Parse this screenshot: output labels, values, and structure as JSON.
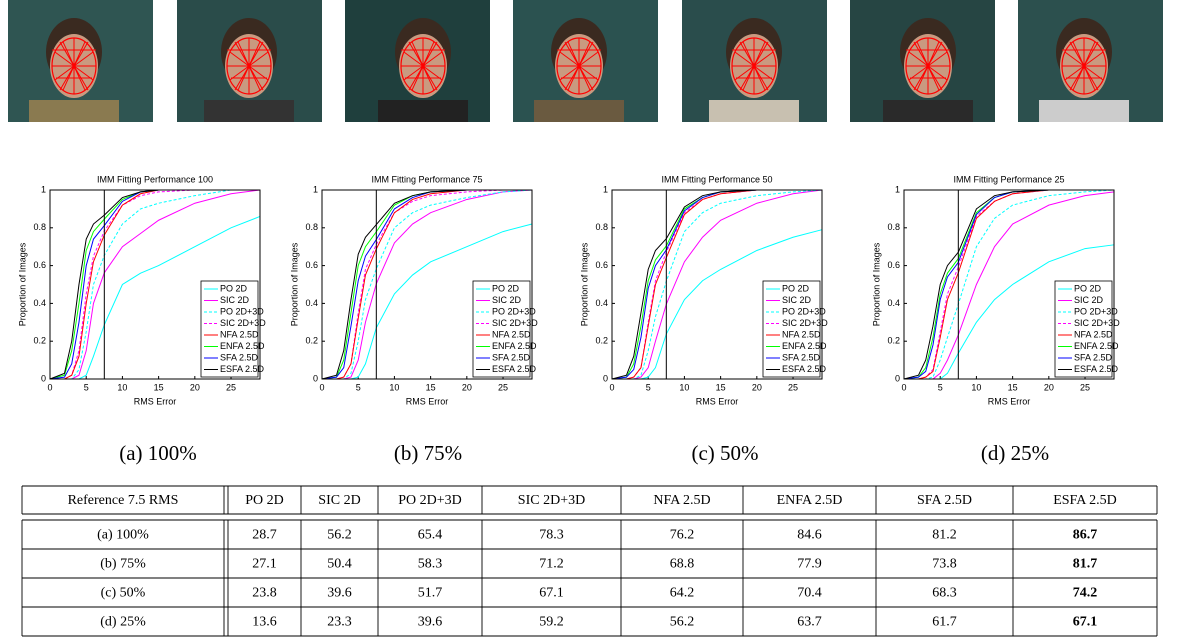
{
  "chart_data": [
    {
      "type": "line",
      "title": "IMM Fitting Performance 100",
      "xlabel": "RMS Error",
      "ylabel": "Proportion of Images",
      "x": [
        0,
        2,
        3,
        4,
        5,
        6,
        7.5,
        10,
        12.5,
        15,
        20,
        25,
        29
      ],
      "xlim": [
        0,
        29
      ],
      "ylim": [
        0,
        1
      ],
      "xticks": [
        0,
        5,
        10,
        15,
        20,
        25
      ],
      "yticks": [
        0,
        0.2,
        0.4,
        0.6,
        0.8,
        1
      ],
      "vline": 7.5,
      "legend": "lower right",
      "series": [
        {
          "name": "PO 2D",
          "color": "#00ffff",
          "dashed": false,
          "values": [
            0,
            0,
            0,
            0,
            0.02,
            0.12,
            0.287,
            0.5,
            0.56,
            0.6,
            0.7,
            0.8,
            0.86
          ]
        },
        {
          "name": "SIC 2D",
          "color": "#ff00ff",
          "dashed": false,
          "values": [
            0,
            0,
            0,
            0.02,
            0.15,
            0.4,
            0.562,
            0.7,
            0.77,
            0.84,
            0.93,
            0.98,
            1
          ]
        },
        {
          "name": "PO 2D+3D",
          "color": "#00ffff",
          "dashed": true,
          "values": [
            0,
            0,
            0,
            0.05,
            0.25,
            0.5,
            0.654,
            0.82,
            0.9,
            0.93,
            0.97,
            1,
            1
          ]
        },
        {
          "name": "SIC 2D+3D",
          "color": "#ff00ff",
          "dashed": true,
          "values": [
            0,
            0,
            0.02,
            0.15,
            0.45,
            0.65,
            0.783,
            0.92,
            0.97,
            0.99,
            1,
            1,
            1
          ]
        },
        {
          "name": "NFA 2.5D",
          "color": "#ff0000",
          "dashed": false,
          "values": [
            0,
            0,
            0.02,
            0.12,
            0.4,
            0.62,
            0.762,
            0.92,
            0.98,
            1,
            1,
            1,
            1
          ]
        },
        {
          "name": "ENFA 2.5D",
          "color": "#00ff00",
          "dashed": false,
          "values": [
            0,
            0.02,
            0.15,
            0.4,
            0.68,
            0.78,
            0.846,
            0.95,
            0.99,
            1,
            1,
            1,
            1
          ]
        },
        {
          "name": "SFA 2.5D",
          "color": "#0000ff",
          "dashed": false,
          "values": [
            0,
            0.01,
            0.08,
            0.3,
            0.6,
            0.74,
            0.812,
            0.94,
            0.99,
            1,
            1,
            1,
            1
          ]
        },
        {
          "name": "ESFA 2.5D",
          "color": "#000000",
          "dashed": false,
          "values": [
            0,
            0.03,
            0.2,
            0.5,
            0.74,
            0.82,
            0.867,
            0.96,
            0.99,
            1,
            1,
            1,
            1
          ]
        }
      ]
    },
    {
      "type": "line",
      "title": "IMM Fitting Performance 75",
      "xlabel": "RMS Error",
      "ylabel": "Proportion of Images",
      "x": [
        0,
        2,
        3,
        4,
        5,
        6,
        7.5,
        10,
        12.5,
        15,
        20,
        25,
        29
      ],
      "xlim": [
        0,
        29
      ],
      "ylim": [
        0,
        1
      ],
      "xticks": [
        0,
        5,
        10,
        15,
        20,
        25
      ],
      "yticks": [
        0,
        0.2,
        0.4,
        0.6,
        0.8,
        1
      ],
      "vline": 7.5,
      "legend": "lower right",
      "series": [
        {
          "name": "PO 2D",
          "color": "#00ffff",
          "dashed": false,
          "values": [
            0,
            0,
            0,
            0,
            0.01,
            0.08,
            0.271,
            0.45,
            0.55,
            0.62,
            0.7,
            0.78,
            0.82
          ]
        },
        {
          "name": "SIC 2D",
          "color": "#ff00ff",
          "dashed": false,
          "values": [
            0,
            0,
            0,
            0.01,
            0.1,
            0.3,
            0.504,
            0.72,
            0.82,
            0.88,
            0.95,
            0.99,
            1
          ]
        },
        {
          "name": "PO 2D+3D",
          "color": "#00ffff",
          "dashed": true,
          "values": [
            0,
            0,
            0,
            0.03,
            0.2,
            0.42,
            0.583,
            0.8,
            0.88,
            0.92,
            0.96,
            0.99,
            1
          ]
        },
        {
          "name": "SIC 2D+3D",
          "color": "#ff00ff",
          "dashed": true,
          "values": [
            0,
            0,
            0.01,
            0.08,
            0.35,
            0.58,
            0.712,
            0.88,
            0.94,
            0.97,
            0.99,
            1,
            1
          ]
        },
        {
          "name": "NFA 2.5D",
          "color": "#ff0000",
          "dashed": false,
          "values": [
            0,
            0,
            0.01,
            0.08,
            0.32,
            0.55,
            0.688,
            0.88,
            0.95,
            0.98,
            1,
            1,
            1
          ]
        },
        {
          "name": "ENFA 2.5D",
          "color": "#00ff00",
          "dashed": false,
          "values": [
            0,
            0.01,
            0.1,
            0.35,
            0.6,
            0.7,
            0.779,
            0.92,
            0.97,
            0.99,
            1,
            1,
            1
          ]
        },
        {
          "name": "SFA 2.5D",
          "color": "#0000ff",
          "dashed": false,
          "values": [
            0,
            0.01,
            0.06,
            0.28,
            0.52,
            0.65,
            0.738,
            0.9,
            0.96,
            0.99,
            1,
            1,
            1
          ]
        },
        {
          "name": "ESFA 2.5D",
          "color": "#000000",
          "dashed": false,
          "values": [
            0,
            0.02,
            0.15,
            0.42,
            0.66,
            0.75,
            0.817,
            0.93,
            0.97,
            0.99,
            1,
            1,
            1
          ]
        }
      ]
    },
    {
      "type": "line",
      "title": "IMM Fitting Performance 50",
      "xlabel": "RMS Error",
      "ylabel": "Proportion of Images",
      "x": [
        0,
        2,
        3,
        4,
        5,
        6,
        7.5,
        10,
        12.5,
        15,
        20,
        25,
        29
      ],
      "xlim": [
        0,
        29
      ],
      "ylim": [
        0,
        1
      ],
      "xticks": [
        0,
        5,
        10,
        15,
        20,
        25
      ],
      "yticks": [
        0,
        0.2,
        0.4,
        0.6,
        0.8,
        1
      ],
      "vline": 7.5,
      "legend": "lower right",
      "series": [
        {
          "name": "PO 2D",
          "color": "#00ffff",
          "dashed": false,
          "values": [
            0,
            0,
            0,
            0,
            0.01,
            0.06,
            0.238,
            0.42,
            0.52,
            0.58,
            0.68,
            0.75,
            0.79
          ]
        },
        {
          "name": "SIC 2D",
          "color": "#ff00ff",
          "dashed": false,
          "values": [
            0,
            0,
            0,
            0.01,
            0.06,
            0.2,
            0.396,
            0.62,
            0.75,
            0.84,
            0.93,
            0.98,
            1
          ]
        },
        {
          "name": "PO 2D+3D",
          "color": "#00ffff",
          "dashed": true,
          "values": [
            0,
            0,
            0,
            0.02,
            0.15,
            0.33,
            0.517,
            0.78,
            0.88,
            0.93,
            0.97,
            0.99,
            1
          ]
        },
        {
          "name": "SIC 2D+3D",
          "color": "#ff00ff",
          "dashed": true,
          "values": [
            0,
            0,
            0.01,
            0.06,
            0.3,
            0.52,
            0.671,
            0.88,
            0.95,
            0.98,
            1,
            1,
            1
          ]
        },
        {
          "name": "NFA 2.5D",
          "color": "#ff0000",
          "dashed": false,
          "values": [
            0,
            0,
            0.01,
            0.06,
            0.28,
            0.5,
            0.642,
            0.87,
            0.95,
            0.98,
            1,
            1,
            1
          ]
        },
        {
          "name": "ENFA 2.5D",
          "color": "#00ff00",
          "dashed": false,
          "values": [
            0,
            0.01,
            0.08,
            0.28,
            0.52,
            0.63,
            0.704,
            0.9,
            0.96,
            0.99,
            1,
            1,
            1
          ]
        },
        {
          "name": "SFA 2.5D",
          "color": "#0000ff",
          "dashed": false,
          "values": [
            0,
            0.01,
            0.05,
            0.22,
            0.48,
            0.6,
            0.683,
            0.89,
            0.96,
            0.99,
            1,
            1,
            1
          ]
        },
        {
          "name": "ESFA 2.5D",
          "color": "#000000",
          "dashed": false,
          "values": [
            0,
            0.02,
            0.12,
            0.35,
            0.58,
            0.68,
            0.742,
            0.91,
            0.97,
            0.99,
            1,
            1,
            1
          ]
        }
      ]
    },
    {
      "type": "line",
      "title": "IMM Fitting Performance 25",
      "xlabel": "RMS Error",
      "ylabel": "Proportion of Images",
      "x": [
        0,
        2,
        3,
        4,
        5,
        6,
        7.5,
        10,
        12.5,
        15,
        20,
        25,
        29
      ],
      "xlim": [
        0,
        29
      ],
      "ylim": [
        0,
        1
      ],
      "xticks": [
        0,
        5,
        10,
        15,
        20,
        25
      ],
      "yticks": [
        0,
        0.2,
        0.4,
        0.6,
        0.8,
        1
      ],
      "vline": 7.5,
      "legend": "lower right",
      "series": [
        {
          "name": "PO 2D",
          "color": "#00ffff",
          "dashed": false,
          "values": [
            0,
            0,
            0,
            0,
            0,
            0.03,
            0.136,
            0.3,
            0.42,
            0.5,
            0.62,
            0.69,
            0.71
          ]
        },
        {
          "name": "SIC 2D",
          "color": "#ff00ff",
          "dashed": false,
          "values": [
            0,
            0,
            0,
            0,
            0.03,
            0.1,
            0.233,
            0.5,
            0.7,
            0.82,
            0.92,
            0.97,
            0.99
          ]
        },
        {
          "name": "PO 2D+3D",
          "color": "#00ffff",
          "dashed": true,
          "values": [
            0,
            0,
            0,
            0.01,
            0.1,
            0.22,
            0.396,
            0.7,
            0.85,
            0.92,
            0.97,
            0.99,
            1
          ]
        },
        {
          "name": "SIC 2D+3D",
          "color": "#ff00ff",
          "dashed": true,
          "values": [
            0,
            0,
            0.01,
            0.05,
            0.25,
            0.45,
            0.592,
            0.86,
            0.94,
            0.98,
            1,
            1,
            1
          ]
        },
        {
          "name": "NFA 2.5D",
          "color": "#ff0000",
          "dashed": false,
          "values": [
            0,
            0,
            0.01,
            0.04,
            0.22,
            0.42,
            0.562,
            0.85,
            0.94,
            0.98,
            1,
            1,
            1
          ]
        },
        {
          "name": "ENFA 2.5D",
          "color": "#00ff00",
          "dashed": false,
          "values": [
            0,
            0.01,
            0.06,
            0.22,
            0.45,
            0.56,
            0.637,
            0.88,
            0.96,
            0.99,
            1,
            1,
            1
          ]
        },
        {
          "name": "SFA 2.5D",
          "color": "#0000ff",
          "dashed": false,
          "values": [
            0,
            0.01,
            0.04,
            0.18,
            0.42,
            0.54,
            0.617,
            0.87,
            0.96,
            0.99,
            1,
            1,
            1
          ]
        },
        {
          "name": "ESFA 2.5D",
          "color": "#000000",
          "dashed": false,
          "values": [
            0,
            0.02,
            0.1,
            0.28,
            0.5,
            0.6,
            0.671,
            0.9,
            0.97,
            0.99,
            1,
            1,
            1
          ]
        }
      ]
    }
  ],
  "captions": [
    "(a) 100%",
    "(b) 75%",
    "(c) 50%",
    "(d) 25%"
  ],
  "table": {
    "header": [
      "Reference 7.5 RMS",
      "PO 2D",
      "SIC 2D",
      "PO 2D+3D",
      "SIC 2D+3D",
      "NFA 2.5D",
      "ENFA 2.5D",
      "SFA 2.5D",
      "ESFA 2.5D"
    ],
    "rows": [
      [
        "(a) 100%",
        28.7,
        56.2,
        65.4,
        78.3,
        76.2,
        84.6,
        81.2,
        86.7
      ],
      [
        "(b) 75%",
        27.1,
        50.4,
        58.3,
        71.2,
        68.8,
        77.9,
        73.8,
        81.7
      ],
      [
        "(c) 50%",
        23.8,
        39.6,
        51.7,
        67.1,
        64.2,
        70.4,
        68.3,
        74.2
      ],
      [
        "(d) 25%",
        13.6,
        23.3,
        39.6,
        59.2,
        56.2,
        63.7,
        61.7,
        67.1
      ]
    ]
  }
}
